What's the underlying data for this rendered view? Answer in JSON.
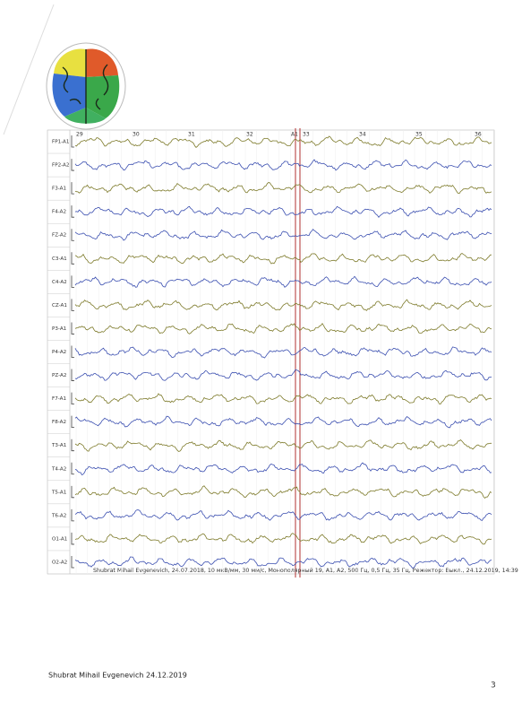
{
  "eeg_page": {
    "time_marks": [
      "29",
      "30",
      "31",
      "32",
      "A1",
      "33",
      "34",
      "35",
      "36"
    ],
    "channels": [
      "FP1-A1",
      "FP2-A2",
      "F3-A1",
      "F4-A2",
      "FZ-A2",
      "C3-A1",
      "C4-A2",
      "CZ-A1",
      "P3-A1",
      "P4-A2",
      "PZ-A2",
      "F7-A1",
      "F8-A2",
      "T3-A1",
      "T4-A2",
      "T5-A1",
      "T6-A2",
      "O1-A1",
      "O2-A2"
    ],
    "info_line": "Shubrat Mihail Evgenevich, 24.07.2018, 10 мкВ/мм, 30 мм/с, Монополярный 19, A1, A2, 500 Гц, 0,5 Гц, 35 Гц, Режектор: Выкл., 24.12.2019, 14:39"
  },
  "footer": {
    "signature": "Shubrat Mihail Evgenevich  24.12.2019",
    "page_number": "3"
  }
}
